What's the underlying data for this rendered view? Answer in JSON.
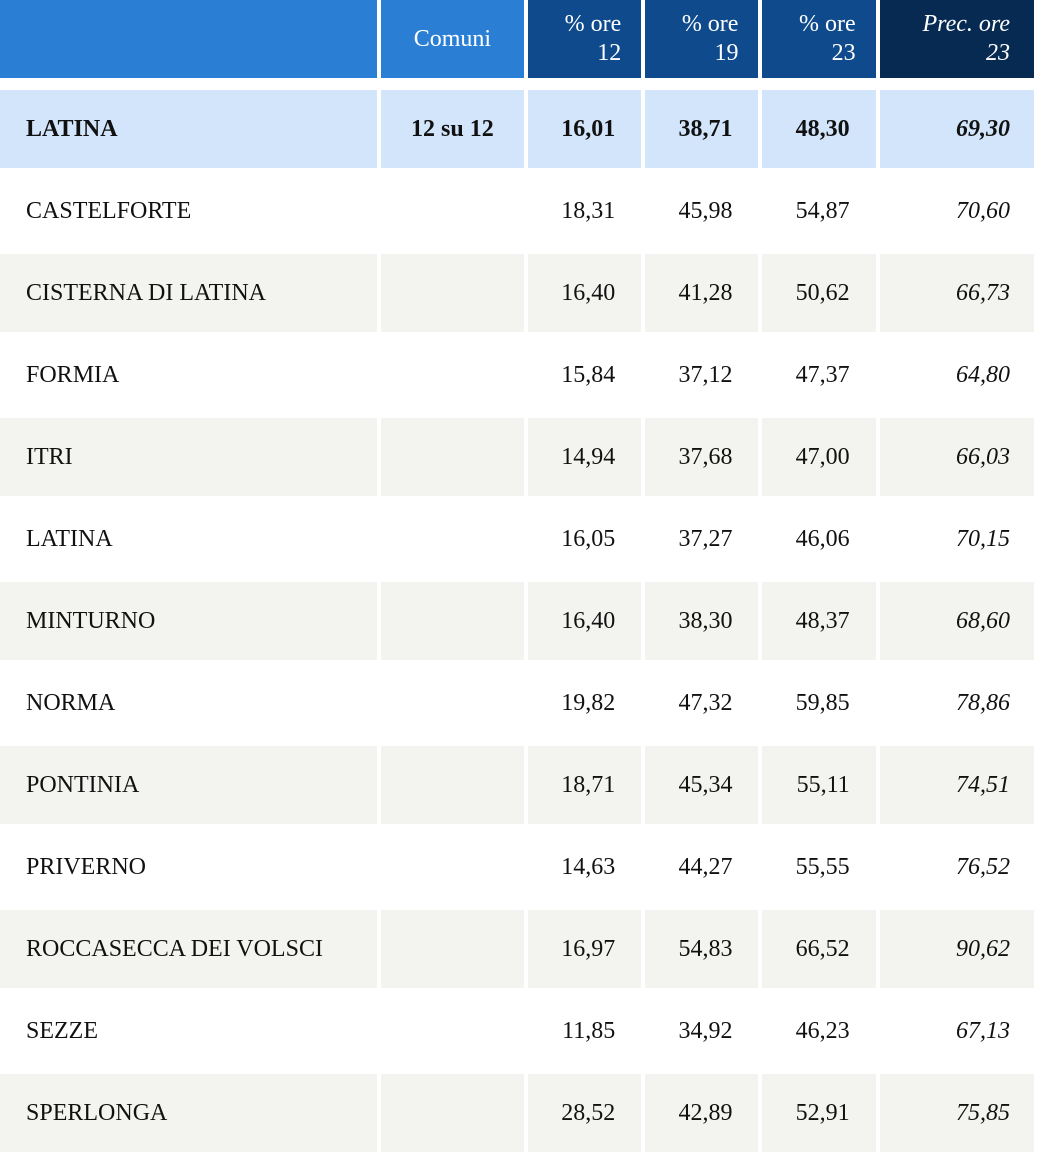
{
  "header": {
    "comuni": "Comuni",
    "p12_a": "% ore",
    "p12_b": "12",
    "p19_a": "% ore",
    "p19_b": "19",
    "p23_a": "% ore",
    "p23_b": "23",
    "prec_a": "Prec. ore",
    "prec_b": "23"
  },
  "total": {
    "name": "LATINA",
    "comuni": "12 su 12",
    "p12": "16,01",
    "p19": "38,71",
    "p23": "48,30",
    "prec": "69,30"
  },
  "rows": [
    {
      "name": "CASTELFORTE",
      "p12": "18,31",
      "p19": "45,98",
      "p23": "54,87",
      "prec": "70,60"
    },
    {
      "name": "CISTERNA DI LATINA",
      "p12": "16,40",
      "p19": "41,28",
      "p23": "50,62",
      "prec": "66,73"
    },
    {
      "name": "FORMIA",
      "p12": "15,84",
      "p19": "37,12",
      "p23": "47,37",
      "prec": "64,80"
    },
    {
      "name": "ITRI",
      "p12": "14,94",
      "p19": "37,68",
      "p23": "47,00",
      "prec": "66,03"
    },
    {
      "name": "LATINA",
      "p12": "16,05",
      "p19": "37,27",
      "p23": "46,06",
      "prec": "70,15"
    },
    {
      "name": "MINTURNO",
      "p12": "16,40",
      "p19": "38,30",
      "p23": "48,37",
      "prec": "68,60"
    },
    {
      "name": "NORMA",
      "p12": "19,82",
      "p19": "47,32",
      "p23": "59,85",
      "prec": "78,86"
    },
    {
      "name": "PONTINIA",
      "p12": "18,71",
      "p19": "45,34",
      "p23": "55,11",
      "prec": "74,51"
    },
    {
      "name": "PRIVERNO",
      "p12": "14,63",
      "p19": "44,27",
      "p23": "55,55",
      "prec": "76,52"
    },
    {
      "name": "ROCCASECCA DEI VOLSCI",
      "p12": "16,97",
      "p19": "54,83",
      "p23": "66,52",
      "prec": "90,62"
    },
    {
      "name": "SEZZE",
      "p12": "11,85",
      "p19": "34,92",
      "p23": "46,23",
      "prec": "67,13"
    },
    {
      "name": "SPERLONGA",
      "p12": "28,52",
      "p19": "42,89",
      "p23": "52,91",
      "prec": "75,85"
    }
  ]
}
